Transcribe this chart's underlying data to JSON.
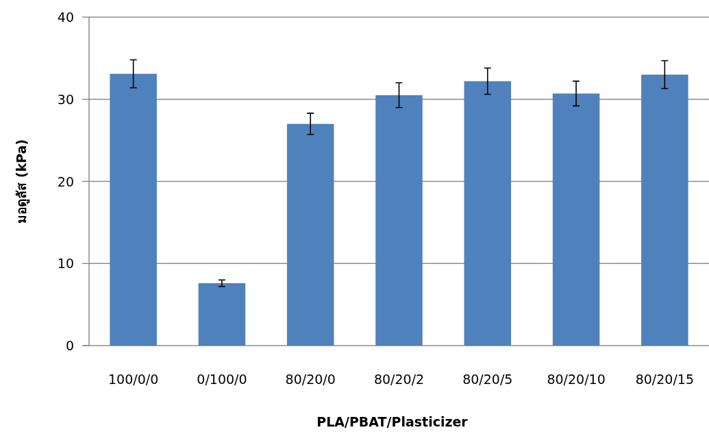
{
  "chart_data": {
    "type": "bar",
    "xlabel": "PLA/PBAT/Plasticizer",
    "ylabel": "มอดูลัส (kPa)",
    "categories": [
      "100/0/0",
      "0/100/0",
      "80/20/0",
      "80/20/2",
      "80/20/5",
      "80/20/10",
      "80/20/15"
    ],
    "values": [
      33.1,
      7.6,
      27.0,
      30.5,
      32.2,
      30.7,
      33.0
    ],
    "errors": [
      1.7,
      0.4,
      1.3,
      1.5,
      1.6,
      1.5,
      1.7
    ],
    "color": "#4f81bd",
    "ylim": [
      0,
      40
    ],
    "yticks": [
      0,
      10,
      20,
      30,
      40
    ],
    "grid": "y"
  }
}
